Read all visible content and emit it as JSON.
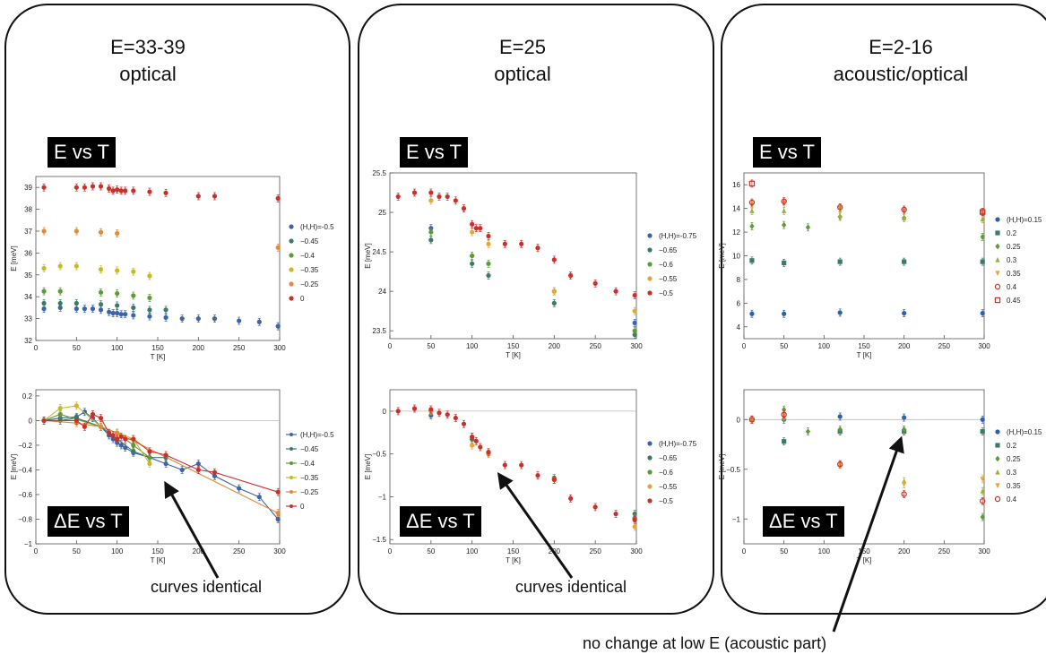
{
  "panels": [
    {
      "title": "E=33-39\noptical",
      "tag_top": "E vs T",
      "tag_bottom": "ΔE vs T",
      "note": "curves identical"
    },
    {
      "title": "E=25\noptical",
      "tag_top": "E vs T",
      "tag_bottom": "ΔE vs T",
      "note": "curves identical"
    },
    {
      "title": "E=2-16\nacoustic/optical",
      "tag_top": "E vs T",
      "tag_bottom": "ΔE vs T"
    }
  ],
  "bottom_note": "no change at low E (acoustic part)",
  "chart_data": [
    {
      "type": "scatter",
      "xlabel": "T [K]",
      "ylabel": "E [meV]",
      "xlim": [
        0,
        300
      ],
      "ylim": [
        32,
        39.5
      ],
      "xticks": [
        0,
        50,
        100,
        150,
        200,
        250,
        300
      ],
      "yticks": [
        32,
        33,
        34,
        35,
        36,
        37,
        38,
        39
      ],
      "series": [
        {
          "name": "(H,H)=-0.5",
          "color": "#3d63a8",
          "x": [
            10,
            30,
            50,
            60,
            70,
            80,
            90,
            95,
            100,
            105,
            110,
            120,
            140,
            160,
            180,
            200,
            220,
            250,
            275,
            298
          ],
          "y": [
            33.45,
            33.5,
            33.45,
            33.45,
            33.45,
            33.4,
            33.3,
            33.25,
            33.25,
            33.2,
            33.2,
            33.15,
            33.1,
            33.05,
            33.0,
            33.0,
            33.0,
            32.9,
            32.85,
            32.65
          ]
        },
        {
          "name": "−0.45",
          "color": "#3d7a66",
          "x": [
            10,
            30,
            50,
            80,
            100,
            120,
            140,
            160
          ],
          "y": [
            33.7,
            33.7,
            33.7,
            33.65,
            33.6,
            33.5,
            33.4,
            33.4
          ]
        },
        {
          "name": "−0.4",
          "color": "#5e9a37",
          "x": [
            10,
            30,
            80,
            100,
            120,
            140
          ],
          "y": [
            34.25,
            34.25,
            34.2,
            34.15,
            34.05,
            33.95
          ]
        },
        {
          "name": "−0.35",
          "color": "#c9b91c",
          "x": [
            10,
            30,
            50,
            80,
            100,
            120,
            140
          ],
          "y": [
            35.3,
            35.4,
            35.4,
            35.25,
            35.2,
            35.15,
            34.95
          ]
        },
        {
          "name": "−0.25",
          "color": "#e08a3c",
          "x": [
            10,
            50,
            80,
            100,
            298
          ],
          "y": [
            37.0,
            37.0,
            36.95,
            36.9,
            36.25
          ]
        },
        {
          "name": "0",
          "color": "#c9302c",
          "x": [
            10,
            50,
            60,
            70,
            80,
            90,
            95,
            100,
            105,
            110,
            120,
            140,
            160,
            200,
            220,
            298
          ],
          "y": [
            39.0,
            39.0,
            39.0,
            39.05,
            39.05,
            38.95,
            38.85,
            38.9,
            38.85,
            38.85,
            38.85,
            38.8,
            38.75,
            38.6,
            38.6,
            38.5
          ]
        }
      ]
    },
    {
      "type": "line",
      "xlabel": "T [K]",
      "ylabel": "E [meV]",
      "xlim": [
        0,
        300
      ],
      "ylim": [
        -1.0,
        0.25
      ],
      "xticks": [
        0,
        50,
        100,
        150,
        200,
        250,
        300
      ],
      "yticks": [
        -1.0,
        -0.8,
        -0.6,
        -0.4,
        -0.2,
        0.0,
        0.2
      ],
      "series": [
        {
          "name": "(H,H)=-0.5",
          "color": "#3d63a8",
          "x": [
            10,
            30,
            50,
            60,
            70,
            80,
            90,
            95,
            100,
            105,
            110,
            120,
            140,
            160,
            180,
            200,
            220,
            250,
            275,
            298
          ],
          "y": [
            0,
            0.02,
            0.03,
            0.07,
            0.02,
            -0.05,
            -0.12,
            -0.15,
            -0.18,
            -0.2,
            -0.22,
            -0.26,
            -0.3,
            -0.35,
            -0.4,
            -0.35,
            -0.45,
            -0.55,
            -0.62,
            -0.8
          ]
        },
        {
          "name": "−0.45",
          "color": "#3d7a66",
          "x": [
            10,
            30,
            50,
            80,
            100,
            120,
            140,
            160
          ],
          "y": [
            0,
            0.0,
            0.02,
            -0.05,
            -0.15,
            -0.25,
            -0.3,
            -0.3
          ]
        },
        {
          "name": "−0.4",
          "color": "#5e9a37",
          "x": [
            10,
            30,
            80,
            100,
            120,
            140
          ],
          "y": [
            0,
            0.05,
            -0.05,
            -0.1,
            -0.2,
            -0.3
          ]
        },
        {
          "name": "−0.35",
          "color": "#c9b91c",
          "x": [
            10,
            30,
            50,
            80,
            100,
            120,
            140
          ],
          "y": [
            0,
            0.1,
            0.12,
            -0.05,
            -0.1,
            -0.15,
            -0.35
          ]
        },
        {
          "name": "−0.25",
          "color": "#e08a3c",
          "x": [
            10,
            50,
            80,
            100,
            298
          ],
          "y": [
            0,
            -0.02,
            -0.05,
            -0.1,
            -0.75
          ]
        },
        {
          "name": "0",
          "color": "#c9302c",
          "x": [
            10,
            50,
            60,
            70,
            80,
            90,
            95,
            100,
            105,
            110,
            120,
            140,
            160,
            200,
            220,
            298
          ],
          "y": [
            0,
            0,
            -0.05,
            0.05,
            0.02,
            -0.1,
            -0.12,
            -0.15,
            -0.13,
            -0.15,
            -0.15,
            -0.25,
            -0.28,
            -0.4,
            -0.42,
            -0.58
          ]
        }
      ]
    },
    {
      "type": "scatter",
      "xlabel": "T [K]",
      "ylabel": "E [meV]",
      "xlim": [
        0,
        300
      ],
      "ylim": [
        23.4,
        25.5
      ],
      "xticks": [
        0,
        50,
        100,
        150,
        200,
        250,
        300
      ],
      "yticks": [
        23.5,
        24.0,
        24.5,
        25.0,
        25.5
      ],
      "series": [
        {
          "name": "(H,H)=-0.75",
          "color": "#3d63a8",
          "x": [
            50,
            298
          ],
          "y": [
            24.8,
            23.6
          ]
        },
        {
          "name": "−0.65",
          "color": "#3d7a66",
          "x": [
            50,
            100,
            120,
            200,
            298
          ],
          "y": [
            24.65,
            24.35,
            24.2,
            23.85,
            23.45
          ]
        },
        {
          "name": "−0.6",
          "color": "#5e9a37",
          "x": [
            50,
            100,
            120,
            200,
            298
          ],
          "y": [
            24.75,
            24.45,
            24.35,
            24.0,
            23.5
          ]
        },
        {
          "name": "−0.55",
          "color": "#e0a83c",
          "x": [
            50,
            100,
            120,
            200,
            298
          ],
          "y": [
            25.15,
            24.75,
            24.6,
            24.0,
            23.75
          ]
        },
        {
          "name": "−0.5",
          "color": "#c9302c",
          "x": [
            10,
            30,
            50,
            60,
            70,
            80,
            90,
            100,
            105,
            110,
            120,
            140,
            160,
            180,
            200,
            220,
            250,
            275,
            298
          ],
          "y": [
            25.2,
            25.25,
            25.25,
            25.2,
            25.2,
            25.15,
            25.05,
            24.85,
            24.8,
            24.8,
            24.7,
            24.6,
            24.6,
            24.55,
            24.4,
            24.2,
            24.1,
            24.0,
            23.95
          ]
        }
      ]
    },
    {
      "type": "scatter",
      "xlabel": "T [K]",
      "ylabel": "E [meV]",
      "xlim": [
        0,
        300
      ],
      "ylim": [
        -1.55,
        0.25
      ],
      "xticks": [
        0,
        50,
        100,
        150,
        200,
        250,
        300
      ],
      "yticks": [
        -1.5,
        -1.0,
        -0.5,
        0.0
      ],
      "series": [
        {
          "name": "(H,H)=-0.75",
          "color": "#3d63a8",
          "x": [
            50,
            298
          ],
          "y": [
            -0.05,
            -1.25
          ]
        },
        {
          "name": "−0.65",
          "color": "#3d7a66",
          "x": [
            50,
            100,
            120,
            200,
            298
          ],
          "y": [
            0,
            -0.33,
            -0.5,
            -0.8,
            -1.2
          ]
        },
        {
          "name": "−0.6",
          "color": "#5e9a37",
          "x": [
            50,
            100,
            120,
            200,
            298
          ],
          "y": [
            0,
            -0.3,
            -0.48,
            -0.78,
            -1.25
          ]
        },
        {
          "name": "−0.55",
          "color": "#e0a83c",
          "x": [
            50,
            100,
            120,
            200,
            298
          ],
          "y": [
            0,
            -0.4,
            -0.5,
            -0.8,
            -1.35
          ]
        },
        {
          "name": "−0.5",
          "color": "#c9302c",
          "x": [
            10,
            30,
            50,
            60,
            70,
            80,
            90,
            100,
            105,
            110,
            120,
            140,
            160,
            180,
            200,
            220,
            250,
            275,
            298
          ],
          "y": [
            0,
            0.03,
            0.02,
            -0.02,
            -0.04,
            -0.08,
            -0.15,
            -0.3,
            -0.35,
            -0.42,
            -0.48,
            -0.63,
            -0.63,
            -0.75,
            -0.8,
            -1.02,
            -1.12,
            -1.2,
            -1.27
          ]
        }
      ]
    },
    {
      "type": "scatter",
      "xlabel": "T [K]",
      "ylabel": "E [meV]",
      "xlim": [
        0,
        300
      ],
      "ylim": [
        3,
        17
      ],
      "xticks": [
        0,
        50,
        100,
        150,
        200,
        250,
        300
      ],
      "yticks": [
        4,
        6,
        8,
        10,
        12,
        14,
        16
      ],
      "series": [
        {
          "name": "(H,H)=0.15",
          "color": "#2f5fa8",
          "marker": "circle",
          "x": [
            10,
            50,
            120,
            200,
            298
          ],
          "y": [
            5.1,
            5.1,
            5.2,
            5.15,
            5.15
          ]
        },
        {
          "name": "0.2",
          "color": "#3d7a66",
          "marker": "square",
          "x": [
            10,
            50,
            120,
            200,
            298
          ],
          "y": [
            9.6,
            9.4,
            9.5,
            9.5,
            9.5
          ]
        },
        {
          "name": "0.25",
          "color": "#5e9a37",
          "marker": "diamond",
          "x": [
            10,
            50,
            80,
            120,
            200,
            298
          ],
          "y": [
            12.5,
            12.6,
            12.4,
            13.3,
            13.2,
            11.6
          ]
        },
        {
          "name": "0.3",
          "color": "#9ab03a",
          "marker": "triangle",
          "x": [
            10,
            50,
            120,
            200,
            298
          ],
          "y": [
            13.8,
            13.8,
            13.4,
            13.2,
            13.1
          ]
        },
        {
          "name": "0.35",
          "color": "#e0a83c",
          "marker": "tri-down",
          "x": [
            10,
            50,
            120,
            200,
            298
          ],
          "y": [
            14.3,
            14.5,
            14.0,
            13.8,
            13.6
          ]
        },
        {
          "name": "0.4",
          "color": "#c9302c",
          "marker": "open-circle",
          "x": [
            10,
            50,
            120,
            200,
            298
          ],
          "y": [
            14.5,
            14.6,
            14.1,
            13.9,
            13.7
          ]
        },
        {
          "name": "0.45",
          "color": "#c9302c",
          "marker": "open-square",
          "x": [
            10,
            298
          ],
          "y": [
            16.1,
            13.7
          ]
        }
      ]
    },
    {
      "type": "scatter",
      "xlabel": "T [K]",
      "ylabel": "E [meV]",
      "xlim": [
        0,
        300
      ],
      "ylim": [
        -1.25,
        0.3
      ],
      "xticks": [
        0,
        50,
        100,
        150,
        200,
        250,
        300
      ],
      "yticks": [
        -1.0,
        -0.5,
        0.0
      ],
      "series": [
        {
          "name": "(H,H)=0.15",
          "color": "#2f5fa8",
          "marker": "circle",
          "x": [
            10,
            50,
            120,
            200,
            298
          ],
          "y": [
            0,
            0,
            0.03,
            0.02,
            0
          ]
        },
        {
          "name": "0.2",
          "color": "#3d7a66",
          "marker": "square",
          "x": [
            10,
            50,
            120,
            200,
            298
          ],
          "y": [
            0,
            -0.22,
            -0.12,
            -0.12,
            -0.12
          ]
        },
        {
          "name": "0.25",
          "color": "#5e9a37",
          "marker": "diamond",
          "x": [
            10,
            50,
            80,
            120,
            200,
            298
          ],
          "y": [
            0,
            0.1,
            -0.12,
            -0.1,
            -0.1,
            -0.98
          ]
        },
        {
          "name": "0.3",
          "color": "#9ab03a",
          "marker": "triangle",
          "x": [
            10,
            50,
            120,
            200,
            298
          ],
          "y": [
            0,
            0.02,
            -0.45,
            -0.62,
            -0.72
          ]
        },
        {
          "name": "0.35",
          "color": "#e0a83c",
          "marker": "tri-down",
          "x": [
            10,
            50,
            120,
            200,
            298
          ],
          "y": [
            0,
            0.05,
            -0.45,
            -0.65,
            -0.6
          ]
        },
        {
          "name": "0.4",
          "color": "#c9302c",
          "marker": "open-circle",
          "x": [
            10,
            50,
            120,
            200,
            298
          ],
          "y": [
            0,
            0.05,
            -0.45,
            -0.75,
            -0.82
          ]
        }
      ]
    }
  ]
}
